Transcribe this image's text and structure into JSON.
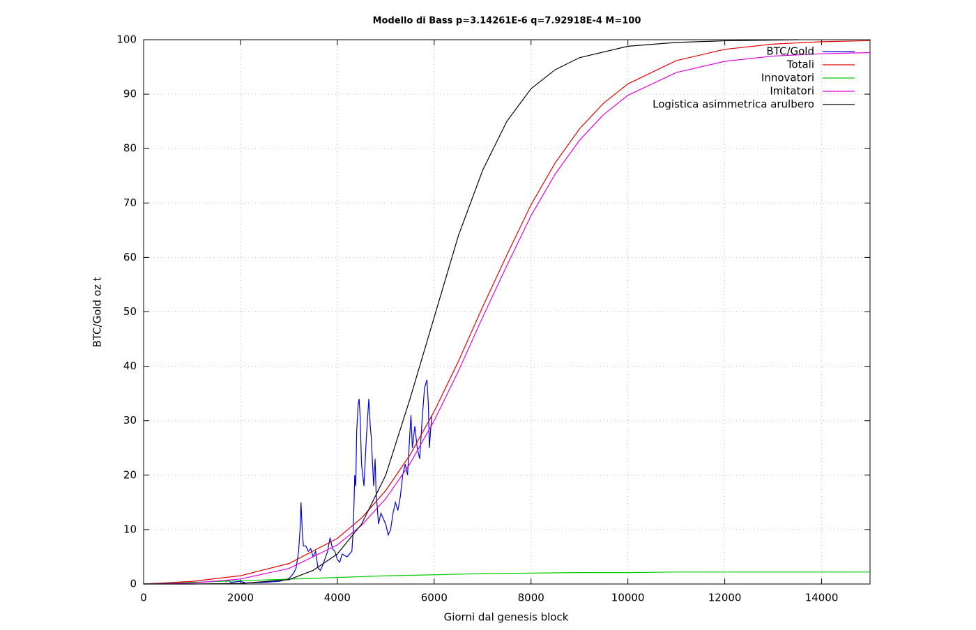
{
  "chart_data": {
    "type": "line",
    "title": "Modello di Bass p=3.14261E-6 q=7.92918E-4 M=100",
    "x_label": "Giorni dal genesis block",
    "y_label": "BTC/Gold oz t",
    "xlim": [
      0,
      15000
    ],
    "xticks": [
      0,
      2000,
      4000,
      6000,
      8000,
      10000,
      12000,
      14000
    ],
    "ylim": [
      0,
      100
    ],
    "yticks": [
      0,
      10,
      20,
      30,
      40,
      50,
      60,
      70,
      80,
      90,
      100
    ],
    "grid": true,
    "legend": "top-right",
    "series": [
      {
        "name": "BTC/Gold",
        "color": "#0000e0",
        "x": [
          1700,
          1750,
          1800,
          2000,
          2100,
          2500,
          2800,
          3000,
          3100,
          3150,
          3200,
          3230,
          3250,
          3280,
          3300,
          3350,
          3400,
          3450,
          3500,
          3550,
          3600,
          3650,
          3700,
          3800,
          3850,
          3900,
          3950,
          4000,
          4050,
          4100,
          4200,
          4300,
          4330,
          4360,
          4380,
          4400,
          4430,
          4450,
          4470,
          4500,
          4550,
          4600,
          4650,
          4680,
          4700,
          4750,
          4780,
          4800,
          4850,
          4900,
          5000,
          5050,
          5100,
          5150,
          5200,
          5250,
          5300,
          5350,
          5400,
          5450,
          5500,
          5520,
          5550,
          5600,
          5650,
          5700,
          5750,
          5800,
          5850,
          5880,
          5900,
          5950
        ],
        "values": [
          0.4,
          0.7,
          0.3,
          0.5,
          0.2,
          0.3,
          0.5,
          1,
          2,
          3,
          6,
          10,
          15,
          9,
          7,
          7,
          6,
          6.5,
          5,
          6,
          3,
          2.5,
          3.5,
          6,
          8.5,
          6.5,
          6,
          4.5,
          4,
          5.5,
          5,
          6,
          10,
          20,
          18,
          28,
          33,
          34,
          31,
          22,
          18,
          27,
          34,
          29,
          27,
          18,
          23,
          17,
          11,
          13,
          11,
          9,
          10,
          13,
          15,
          13.5,
          16,
          20,
          22,
          20,
          28,
          31,
          25,
          29,
          25,
          23,
          30,
          36,
          37.5,
          33,
          25,
          31
        ]
      },
      {
        "name": "Totali",
        "color": "#e00000",
        "x": [
          0,
          1000,
          2000,
          3000,
          4000,
          4500,
          5000,
          5500,
          6000,
          6500,
          7000,
          7500,
          8000,
          8500,
          9000,
          9500,
          10000,
          11000,
          12000,
          13000,
          14000,
          15000
        ],
        "values": [
          0,
          0.48,
          1.52,
          3.76,
          8.37,
          12.13,
          17.18,
          23.7,
          31.71,
          40.9,
          50.9,
          60.43,
          69.68,
          77.39,
          83.61,
          88.36,
          91.88,
          96.17,
          98.23,
          99.2,
          99.63,
          99.83
        ]
      },
      {
        "name": "Innovatori",
        "color": "#00cc00",
        "x": [
          0,
          1000,
          2000,
          3000,
          4000,
          4500,
          5000,
          5500,
          6000,
          6500,
          7000,
          7500,
          8000,
          8500,
          9000,
          9500,
          10000,
          11000,
          12000,
          13000,
          14000,
          15000
        ],
        "values": [
          0,
          0.3,
          0.6,
          0.9,
          1.2,
          1.35,
          1.5,
          1.6,
          1.7,
          1.8,
          1.9,
          1.95,
          2.0,
          2.05,
          2.1,
          2.1,
          2.1,
          2.2,
          2.2,
          2.2,
          2.2,
          2.2
        ]
      },
      {
        "name": "Imitatori",
        "color": "#e000e0",
        "x": [
          0,
          1000,
          2000,
          3000,
          4000,
          4500,
          5000,
          5500,
          6000,
          6500,
          7000,
          7500,
          8000,
          8500,
          9000,
          9500,
          10000,
          11000,
          12000,
          13000,
          14000,
          15000
        ],
        "values": [
          0,
          0.18,
          0.92,
          2.86,
          7.17,
          10.78,
          15.68,
          22.1,
          30.01,
          39.1,
          49.0,
          58.48,
          67.68,
          75.34,
          81.51,
          86.26,
          89.78,
          93.97,
          96.03,
          97.0,
          97.43,
          97.63
        ]
      },
      {
        "name": "Logistica asimmetrica arulbero",
        "color": "#000000",
        "x": [
          0,
          1000,
          2000,
          3000,
          3500,
          4000,
          4500,
          5000,
          5500,
          6000,
          6500,
          7000,
          7500,
          8000,
          8500,
          9000,
          10000,
          11000,
          12000,
          13500
        ],
        "values": [
          0,
          0,
          0.1,
          0.8,
          2.5,
          5.5,
          11,
          20,
          34,
          49,
          64,
          76,
          85,
          91,
          94.5,
          96.7,
          98.8,
          99.5,
          99.8,
          100
        ]
      }
    ]
  }
}
